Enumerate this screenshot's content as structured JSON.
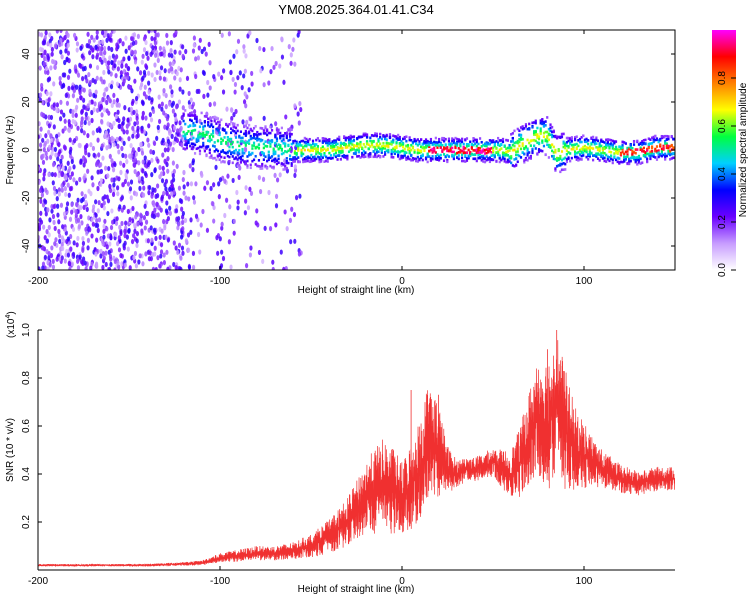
{
  "chart_data": [
    {
      "type": "heatmap",
      "title": "YM08.2025.364.01.41.C34",
      "xlabel": "Height of straight line (km)",
      "ylabel": "Frequency (Hz)",
      "xlim": [
        -200,
        150
      ],
      "ylim": [
        -50,
        50
      ],
      "xticks": [
        -200,
        -100,
        0,
        100
      ],
      "yticks": [
        -40,
        -20,
        0,
        20,
        40
      ],
      "colorbar": {
        "label": "Normalized spectral amplitude",
        "range": [
          0,
          1
        ],
        "ticks": [
          "0.0",
          "0.2",
          "0.4",
          "0.6",
          "0.8"
        ],
        "tick_values": [
          0,
          0.2,
          0.4,
          0.6,
          0.8
        ],
        "colors": [
          "#ffffff",
          "#c79cff",
          "#6a00ff",
          "#0000ff",
          "#00d0ff",
          "#00ff40",
          "#ffff00",
          "#ff8000",
          "#ff0000",
          "#ff00ff"
        ]
      },
      "scatter_noise_extent": [
        -200,
        -55
      ],
      "ridge": [
        {
          "x": -120,
          "y": 8
        },
        {
          "x": -110,
          "y": 7
        },
        {
          "x": -100,
          "y": 4
        },
        {
          "x": -90,
          "y": 2
        },
        {
          "x": -80,
          "y": 1
        },
        {
          "x": -70,
          "y": 1
        },
        {
          "x": -60,
          "y": 0
        },
        {
          "x": -50,
          "y": 0
        },
        {
          "x": -40,
          "y": 0
        },
        {
          "x": -30,
          "y": 1
        },
        {
          "x": -20,
          "y": 2
        },
        {
          "x": -10,
          "y": 2
        },
        {
          "x": 0,
          "y": 1
        },
        {
          "x": 10,
          "y": 0
        },
        {
          "x": 20,
          "y": 0
        },
        {
          "x": 30,
          "y": 0
        },
        {
          "x": 40,
          "y": 0
        },
        {
          "x": 50,
          "y": 0
        },
        {
          "x": 55,
          "y": 0
        },
        {
          "x": 60,
          "y": -1
        },
        {
          "x": 65,
          "y": 2
        },
        {
          "x": 70,
          "y": 4
        },
        {
          "x": 75,
          "y": 6
        },
        {
          "x": 80,
          "y": 6
        },
        {
          "x": 85,
          "y": -2
        },
        {
          "x": 90,
          "y": 0
        },
        {
          "x": 100,
          "y": 1
        },
        {
          "x": 110,
          "y": 0
        },
        {
          "x": 120,
          "y": -1
        },
        {
          "x": 130,
          "y": -1
        },
        {
          "x": 140,
          "y": 1
        },
        {
          "x": 150,
          "y": 1
        }
      ]
    },
    {
      "type": "line",
      "xlabel": "Height of straight line (km)",
      "ylabel": "SNR (10 * v/v)",
      "y_multiplier": "(x10",
      "y_multiplier_exp": "4",
      "y_multiplier_close": ")",
      "xlim": [
        -200,
        150
      ],
      "ylim": [
        0,
        1.0
      ],
      "xticks": [
        -200,
        -100,
        0,
        100
      ],
      "yticks": [
        "0.2",
        "0.4",
        "0.6",
        "0.8",
        "1.0"
      ],
      "ytick_values": [
        0.2,
        0.4,
        0.6,
        0.8,
        1.0
      ],
      "color": "#f03030",
      "series": [
        {
          "x": [
            -200,
            -180,
            -160,
            -140,
            -120,
            -110,
            -100,
            -90,
            -80,
            -70,
            -60,
            -50,
            -40,
            -30,
            -25,
            -20,
            -15,
            -10,
            -5,
            0,
            5,
            10,
            15,
            20,
            25,
            30,
            35,
            40,
            50,
            55,
            60,
            65,
            70,
            75,
            80,
            85,
            90,
            95,
            100,
            105,
            110,
            120,
            130,
            140,
            150
          ],
          "y": [
            0.02,
            0.02,
            0.02,
            0.02,
            0.025,
            0.03,
            0.05,
            0.06,
            0.07,
            0.07,
            0.08,
            0.1,
            0.14,
            0.2,
            0.25,
            0.3,
            0.33,
            0.35,
            0.33,
            0.3,
            0.35,
            0.42,
            0.55,
            0.5,
            0.42,
            0.4,
            0.42,
            0.42,
            0.45,
            0.42,
            0.4,
            0.45,
            0.55,
            0.65,
            0.6,
            0.7,
            0.58,
            0.5,
            0.48,
            0.45,
            0.42,
            0.38,
            0.36,
            0.38,
            0.38
          ],
          "spread": [
            0.005,
            0.005,
            0.005,
            0.006,
            0.008,
            0.01,
            0.02,
            0.025,
            0.03,
            0.03,
            0.035,
            0.05,
            0.07,
            0.1,
            0.12,
            0.15,
            0.18,
            0.2,
            0.18,
            0.15,
            0.18,
            0.22,
            0.25,
            0.2,
            0.1,
            0.06,
            0.05,
            0.05,
            0.06,
            0.08,
            0.1,
            0.15,
            0.2,
            0.25,
            0.28,
            0.3,
            0.25,
            0.18,
            0.14,
            0.1,
            0.08,
            0.06,
            0.05,
            0.05,
            0.05
          ],
          "peaks": [
            {
              "x": 5,
              "y": 0.75
            },
            {
              "x": 20,
              "y": 0.73
            },
            {
              "x": 80,
              "y": 0.92
            },
            {
              "x": 85,
              "y": 1.0
            },
            {
              "x": 88,
              "y": 0.85
            }
          ]
        }
      ]
    }
  ]
}
